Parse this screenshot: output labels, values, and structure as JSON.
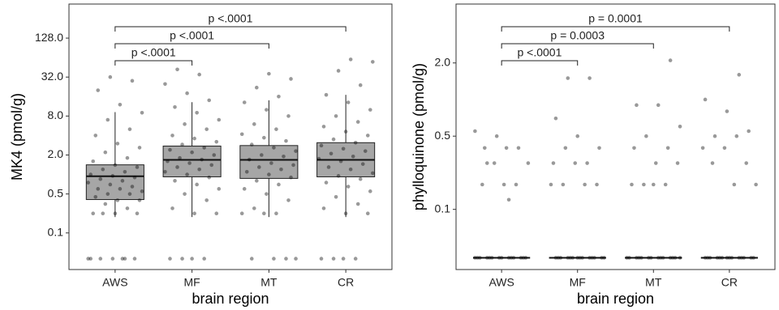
{
  "chart_data": [
    {
      "type": "box",
      "ylabel": "MK4 (pmol/g)",
      "xlabel": "brain region",
      "categories": [
        "AWS",
        "MF",
        "MT",
        "CR"
      ],
      "log_scale": true,
      "grid": false,
      "ylim": [
        0.034,
        430
      ],
      "yticks": [
        {
          "value": 0.125,
          "label": "0.1"
        },
        0.5,
        {
          "value": 2,
          "label": "2.0"
        },
        {
          "value": 8,
          "label": "8.0"
        },
        {
          "value": 32,
          "label": "32.0"
        },
        {
          "value": 128,
          "label": "128.0"
        }
      ],
      "box_color": "#a6a6a6",
      "point_color": "#000000",
      "boxes": [
        {
          "whislo": 0.22,
          "q1": 0.41,
          "med": 0.94,
          "q3": 1.41,
          "whishi": 9.2
        },
        {
          "whislo": 0.22,
          "q1": 0.92,
          "med": 1.68,
          "q3": 2.75,
          "whishi": 13.1
        },
        {
          "whislo": 0.22,
          "q1": 0.87,
          "med": 1.68,
          "q3": 2.8,
          "whishi": 14
        },
        {
          "whislo": 0.22,
          "q1": 0.92,
          "med": 1.68,
          "q3": 3.1,
          "whishi": 17
        }
      ],
      "points": [
        [
          0.05,
          0.05,
          0.05,
          0.05,
          0.05,
          0.05,
          0.05,
          0.25,
          0.25,
          0.25,
          0.25,
          0.3,
          0.35,
          0.4,
          0.4,
          0.45,
          0.5,
          0.5,
          0.55,
          0.6,
          0.6,
          0.65,
          0.7,
          0.75,
          0.8,
          0.85,
          0.9,
          0.95,
          1,
          1.1,
          1.2,
          1.3,
          1.4,
          1.6,
          1.8,
          2.2,
          2.6,
          3,
          4,
          5,
          7,
          9,
          12,
          20,
          28,
          32
        ],
        [
          0.05,
          0.05,
          0.05,
          0.05,
          0.25,
          0.25,
          0.3,
          0.4,
          0.5,
          0.6,
          0.7,
          0.8,
          0.9,
          1,
          1.1,
          1.2,
          1.3,
          1.4,
          1.5,
          1.6,
          1.7,
          1.8,
          2,
          2.2,
          2.4,
          2.6,
          2.9,
          3.2,
          3.6,
          4,
          5,
          6,
          7,
          9,
          11,
          14,
          18,
          25,
          35,
          42
        ],
        [
          0.05,
          0.05,
          0.05,
          0.05,
          0.25,
          0.25,
          0.25,
          0.3,
          0.4,
          0.5,
          0.6,
          0.7,
          0.8,
          0.9,
          1,
          1.1,
          1.2,
          1.3,
          1.4,
          1.5,
          1.7,
          1.9,
          2,
          2.3,
          2.6,
          2.9,
          3.3,
          3.7,
          4.2,
          5,
          6,
          8,
          10,
          13,
          16,
          22,
          30,
          36
        ],
        [
          0.05,
          0.05,
          0.05,
          0.05,
          0.25,
          0.25,
          0.3,
          0.35,
          0.45,
          0.55,
          0.65,
          0.75,
          0.85,
          0.95,
          1.05,
          1.2,
          1.3,
          1.45,
          1.6,
          1.75,
          1.9,
          2.1,
          2.3,
          2.5,
          2.8,
          3.1,
          3.5,
          4,
          4.6,
          5.5,
          6.5,
          8,
          10,
          13,
          17,
          24,
          40,
          55,
          60
        ]
      ]
    },
    {
      "type": "box",
      "ylabel": "phylloquinone (pmol/g)",
      "xlabel": "brain region",
      "categories": [
        "AWS",
        "MF",
        "MT",
        "CR"
      ],
      "log_scale": true,
      "grid": false,
      "ylim": [
        0.04,
        6.1
      ],
      "yticks": [
        {
          "value": 0.125,
          "label": "0.1"
        },
        0.5,
        {
          "value": 2,
          "label": "2.0"
        }
      ],
      "box_color": "#a6a6a6",
      "point_color": "#000000",
      "boxes": [
        {
          "whislo": 0.05,
          "q1": 0.05,
          "med": 0.05,
          "q3": 0.05,
          "whishi": 0.05
        },
        {
          "whislo": 0.05,
          "q1": 0.05,
          "med": 0.05,
          "q3": 0.05,
          "whishi": 0.05
        },
        {
          "whislo": 0.05,
          "q1": 0.05,
          "med": 0.05,
          "q3": 0.05,
          "whishi": 0.05
        },
        {
          "whislo": 0.05,
          "q1": 0.05,
          "med": 0.05,
          "q3": 0.05,
          "whishi": 0.05
        }
      ],
      "points": [
        [
          0.05,
          0.05,
          0.05,
          0.05,
          0.05,
          0.05,
          0.05,
          0.05,
          0.05,
          0.05,
          0.05,
          0.05,
          0.05,
          0.05,
          0.2,
          0.2,
          0.2,
          0.3,
          0.3,
          0.4,
          0.4,
          0.4,
          0.5,
          0.55,
          0.15,
          0.3
        ],
        [
          0.05,
          0.05,
          0.05,
          0.05,
          0.05,
          0.05,
          0.05,
          0.05,
          0.05,
          0.05,
          0.05,
          0.05,
          0.05,
          0.05,
          0.2,
          0.2,
          0.2,
          0.2,
          0.3,
          0.3,
          0.3,
          0.4,
          0.4,
          0.5,
          0.7,
          1.5,
          1.5
        ],
        [
          0.05,
          0.05,
          0.05,
          0.05,
          0.05,
          0.05,
          0.05,
          0.05,
          0.05,
          0.05,
          0.05,
          0.05,
          0.05,
          0.05,
          0.2,
          0.2,
          0.2,
          0.2,
          0.3,
          0.3,
          0.4,
          0.4,
          0.5,
          0.6,
          0.9,
          0.9,
          2.1
        ],
        [
          0.05,
          0.05,
          0.05,
          0.05,
          0.05,
          0.05,
          0.05,
          0.05,
          0.05,
          0.05,
          0.05,
          0.05,
          0.05,
          0.05,
          0.2,
          0.2,
          0.3,
          0.3,
          0.4,
          0.4,
          0.5,
          0.5,
          0.55,
          0.8,
          1.0,
          1.6
        ]
      ]
    }
  ],
  "annotations": [
    [
      "p <.0001",
      "p <.0001",
      "p <.0001"
    ],
    [
      "p <.0001",
      "p = 0.0003",
      "p = 0.0001"
    ]
  ]
}
